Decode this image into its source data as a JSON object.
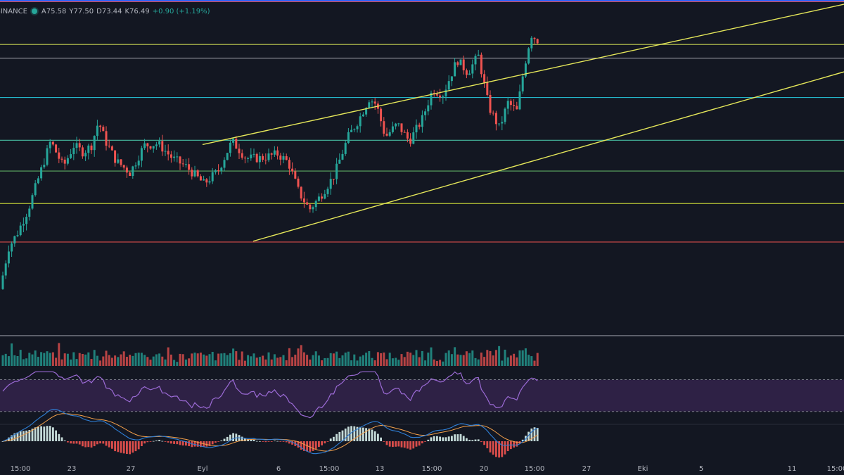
{
  "legend": {
    "symbol": "BINANCE",
    "open_label": "A",
    "open": "75.58",
    "high_label": "Y",
    "high": "77.50",
    "low_label": "D",
    "low": "73.44",
    "close_label": "K",
    "close": "76.49",
    "change": "+0.90 (+1.19%)"
  },
  "colors": {
    "background": "#131722",
    "up": "#26a69a",
    "down": "#ef5350",
    "trendline": "#e6e85a",
    "rsi": "#9c6bd6",
    "rsi_band": "#3a2654",
    "macd_line": "#2f7fd6",
    "signal_line": "#f5a14b"
  },
  "chart_data": {
    "type": "candlestick",
    "x_tick_labels": [
      "15:00",
      "23",
      "27",
      "Eyl",
      "6",
      "15:00",
      "13",
      "15:00",
      "20",
      "15:00",
      "27",
      "Eki",
      "5",
      "11",
      "15:00"
    ],
    "ylim": [
      53,
      92
    ],
    "price_path": [
      [
        0,
        58.2
      ],
      [
        12,
        63.0
      ],
      [
        25,
        64.8
      ],
      [
        40,
        67.5
      ],
      [
        58,
        72.0
      ],
      [
        72,
        75.5
      ],
      [
        90,
        72.5
      ],
      [
        105,
        75.0
      ],
      [
        118,
        74.2
      ],
      [
        130,
        75.0
      ],
      [
        140,
        77.8
      ],
      [
        150,
        75.5
      ],
      [
        165,
        73.2
      ],
      [
        185,
        71.8
      ],
      [
        205,
        75.0
      ],
      [
        225,
        75.2
      ],
      [
        245,
        73.5
      ],
      [
        265,
        72.5
      ],
      [
        290,
        70.5
      ],
      [
        310,
        72.0
      ],
      [
        330,
        75.5
      ],
      [
        350,
        73.5
      ],
      [
        370,
        73.5
      ],
      [
        395,
        74.0
      ],
      [
        410,
        73.0
      ],
      [
        425,
        69.5
      ],
      [
        440,
        67.5
      ],
      [
        455,
        69.0
      ],
      [
        475,
        71.5
      ],
      [
        495,
        76.0
      ],
      [
        510,
        78.0
      ],
      [
        525,
        80.5
      ],
      [
        535,
        79.8
      ],
      [
        548,
        76.0
      ],
      [
        565,
        77.5
      ],
      [
        582,
        75.5
      ],
      [
        600,
        78.0
      ],
      [
        615,
        81.5
      ],
      [
        630,
        81.0
      ],
      [
        650,
        85.0
      ],
      [
        665,
        83.5
      ],
      [
        680,
        85.5
      ],
      [
        695,
        79.5
      ],
      [
        710,
        77.0
      ],
      [
        722,
        80.0
      ],
      [
        735,
        79.0
      ],
      [
        745,
        84.0
      ],
      [
        755,
        88.0
      ],
      [
        768,
        87.0
      ]
    ],
    "horizontal_levels": [
      {
        "price": 91.8,
        "color": "#ef5350"
      },
      {
        "price": 86.8,
        "color": "#d4e157"
      },
      {
        "price": 85.2,
        "color": "#9598a1"
      },
      {
        "price": 80.6,
        "color": "#26c6da"
      },
      {
        "price": 75.6,
        "color": "#4dd0b1"
      },
      {
        "price": 72.0,
        "color": "#66bb6a"
      },
      {
        "price": 68.2,
        "color": "#cddc39"
      },
      {
        "price": 63.7,
        "color": "#ef5350"
      }
    ],
    "trendlines": [
      {
        "from": [
          288,
          75.1
        ],
        "to": [
          1200,
          91.5
        ]
      },
      {
        "from": [
          360,
          63.8
        ],
        "to": [
          1200,
          83.6
        ]
      }
    ],
    "rsi": {
      "upper": 70,
      "lower": 30,
      "ylim": [
        20,
        82
      ]
    },
    "volume_ylim": [
      0,
      40
    ],
    "macd_ylim": [
      -3,
      3
    ]
  }
}
